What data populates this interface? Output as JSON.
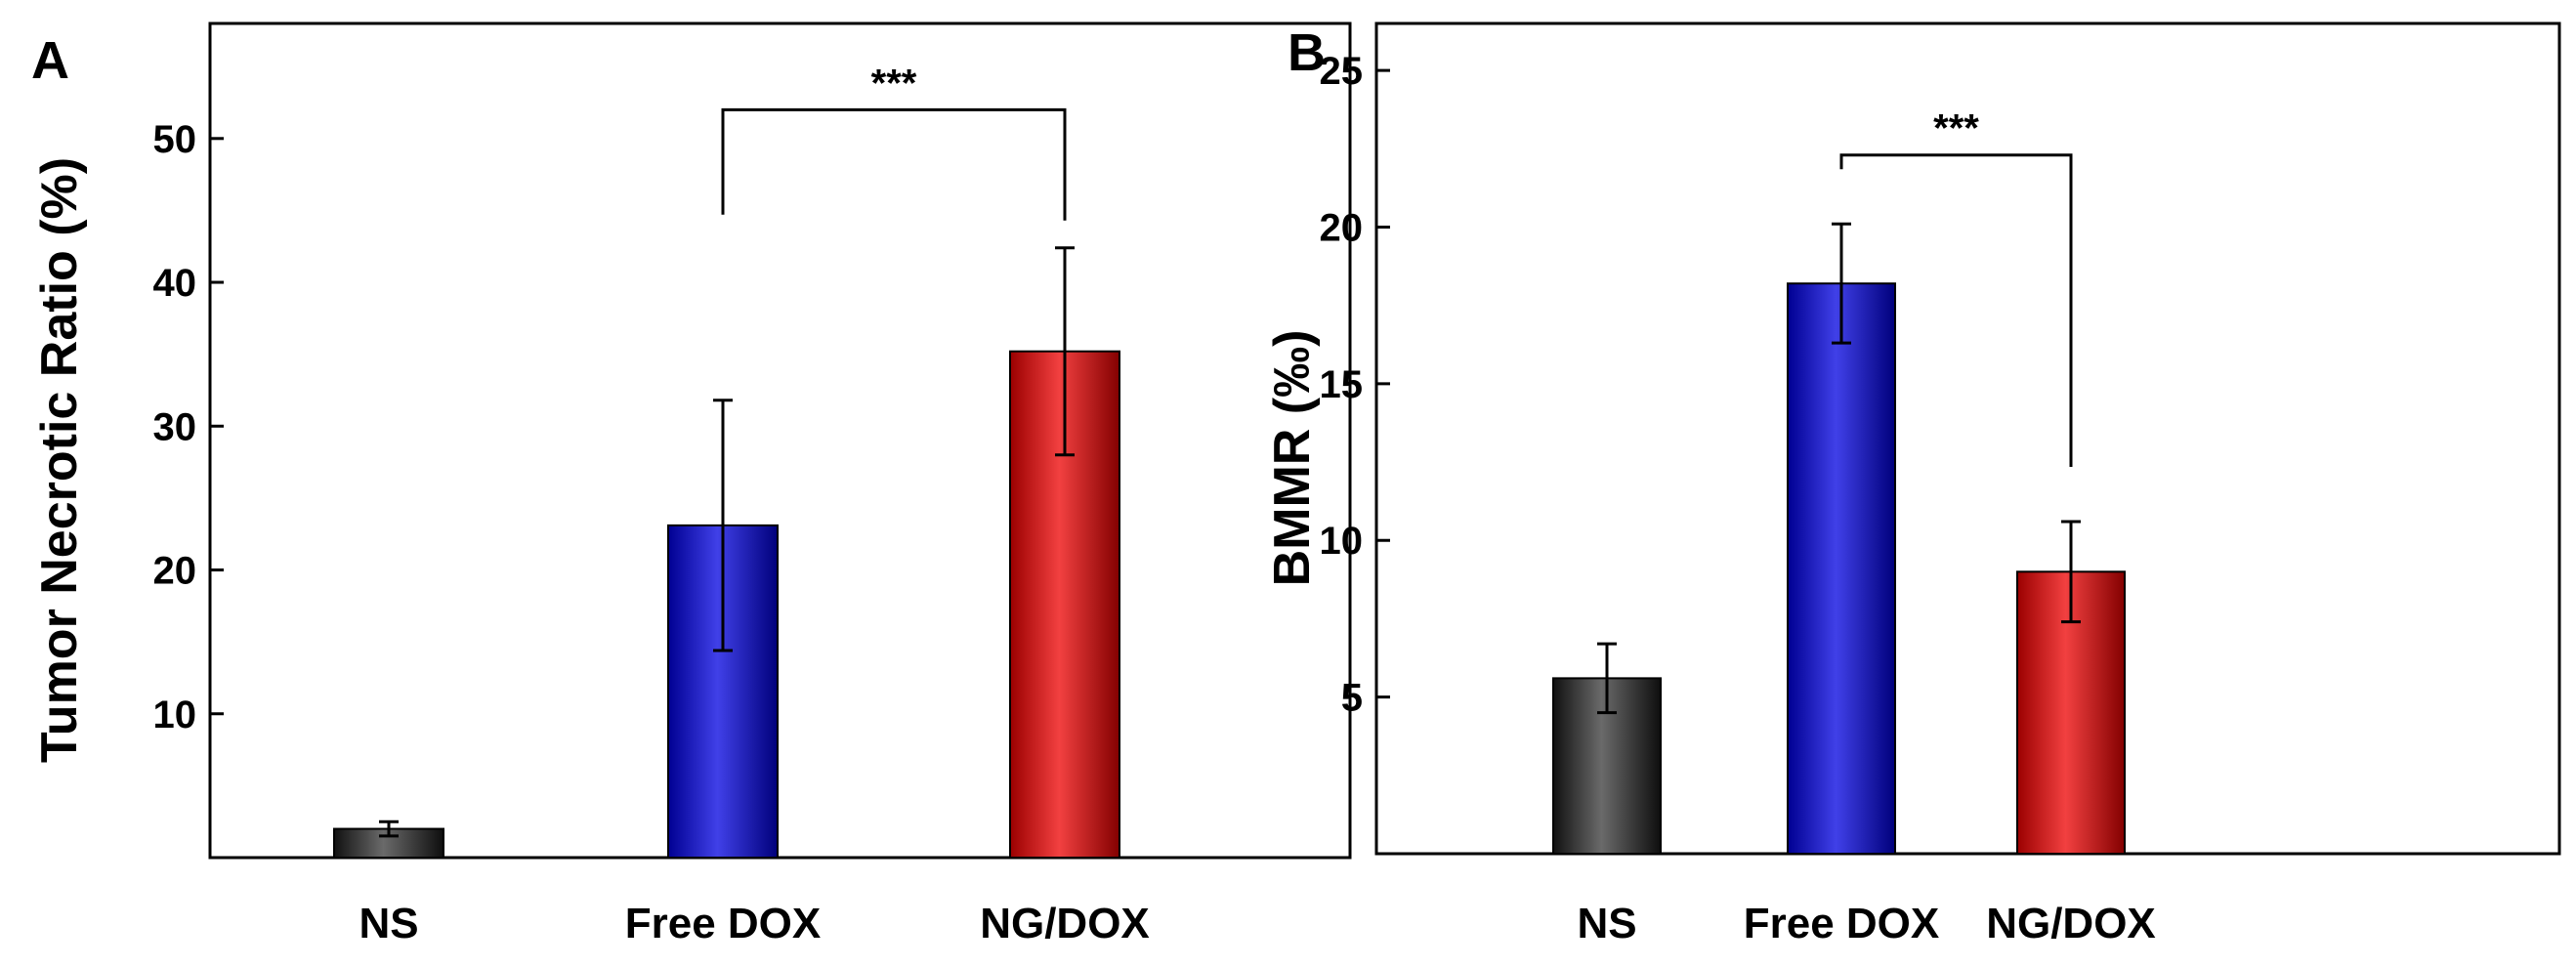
{
  "chart_data": [
    {
      "type": "bar",
      "panel_label": "A",
      "ylabel": "Tumor Necrotic Ratio (%)",
      "xlabel": "",
      "categories": [
        "NS",
        "Free DOX",
        "NG/DOX"
      ],
      "values": [
        2.0,
        23.1,
        35.2
      ],
      "errors": [
        0.5,
        8.7,
        7.2
      ],
      "colors": [
        "#1a1a1a",
        "#0000e0",
        "#ee0000"
      ],
      "ylim": [
        0,
        58
      ],
      "yticks": [
        10,
        20,
        30,
        40,
        50
      ],
      "significance": {
        "between": [
          "Free DOX",
          "NG/DOX"
        ],
        "label": "***",
        "level": 52
      },
      "grid": false
    },
    {
      "type": "bar",
      "panel_label": "B",
      "ylabel": "BMMR (‰)",
      "xlabel": "",
      "categories": [
        "NS",
        "Free DOX",
        "NG/DOX"
      ],
      "values": [
        5.6,
        18.2,
        9.0
      ],
      "errors": [
        1.1,
        1.9,
        1.6
      ],
      "colors": [
        "#1a1a1a",
        "#0000e0",
        "#ee0000"
      ],
      "ylim": [
        0,
        26.5
      ],
      "yticks": [
        5,
        10,
        15,
        20,
        25
      ],
      "significance": {
        "between": [
          "Free DOX",
          "NG/DOX"
        ],
        "label": "***",
        "level": 22.3
      },
      "grid": false
    }
  ]
}
